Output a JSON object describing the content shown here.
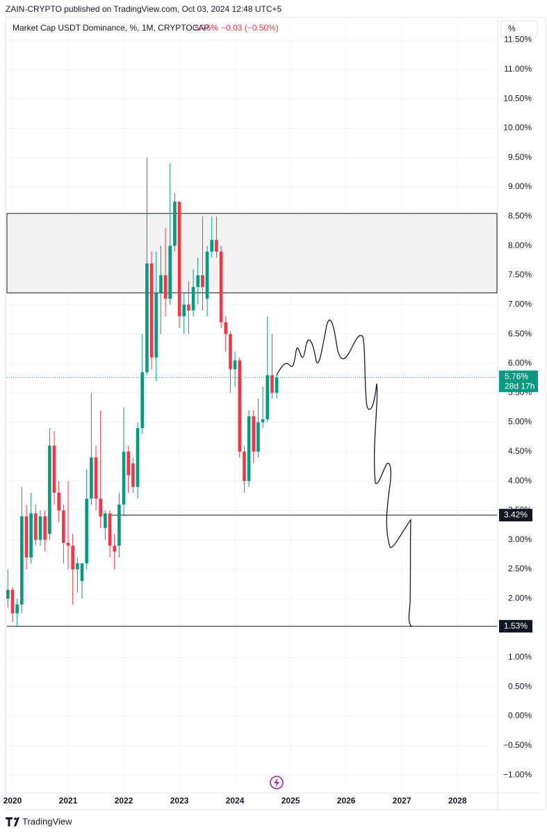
{
  "chart_data": {
    "type": "candlestick",
    "header": "ZAIN-CRYPTO published on TradingView.com, Oct 03, 2024 12:48 UTC+5",
    "legend": {
      "symbol": "Market Cap USDT Dominance, %, 1M, CRYPTOCAP",
      "price": "5.76%",
      "change": "−0.03 (−0.50%)"
    },
    "scale_button": "%",
    "brand": "TradingView",
    "up_color": "#089981",
    "down_color": "#f23645",
    "xlim": [
      2019.9,
      2028.71
    ],
    "xticks": [
      2020,
      2021,
      2022,
      2023,
      2024,
      2025,
      2026,
      2027,
      2028
    ],
    "ylim": [
      -1.27,
      11.53
    ],
    "yticks": [
      {
        "value": -1,
        "label": "−1.00%"
      },
      {
        "value": -0.5,
        "label": "−0.50%"
      },
      {
        "value": 0,
        "label": "0.00%"
      },
      {
        "value": 0.5,
        "label": "0.50%"
      },
      {
        "value": 1,
        "label": "1.00%"
      },
      {
        "value": 1.5,
        "label": "1.50%"
      },
      {
        "value": 2,
        "label": "2.00%"
      },
      {
        "value": 2.5,
        "label": "2.50%"
      },
      {
        "value": 3,
        "label": "3.00%"
      },
      {
        "value": 3.5,
        "label": "3.50%"
      },
      {
        "value": 4,
        "label": "4.00%"
      },
      {
        "value": 4.5,
        "label": "4.50%"
      },
      {
        "value": 5,
        "label": "5.00%"
      },
      {
        "value": 5.5,
        "label": "5.50%"
      },
      {
        "value": 6,
        "label": "6.00%"
      },
      {
        "value": 6.5,
        "label": "6.50%"
      },
      {
        "value": 7,
        "label": "7.00%"
      },
      {
        "value": 7.5,
        "label": "7.50%"
      },
      {
        "value": 8,
        "label": "8.00%"
      },
      {
        "value": 8.5,
        "label": "8.50%"
      },
      {
        "value": 9,
        "label": "9.00%"
      },
      {
        "value": 9.5,
        "label": "9.50%"
      },
      {
        "value": 10,
        "label": "10.00%"
      },
      {
        "value": 10.5,
        "label": "10.50%"
      },
      {
        "value": 11,
        "label": "11.00%"
      },
      {
        "value": 11.5,
        "label": "11.50%"
      }
    ],
    "grid": true,
    "zone": {
      "low": 7.2,
      "high": 8.55
    },
    "levels": [
      {
        "value": 3.42,
        "label": "3.42%"
      },
      {
        "value": 1.53,
        "label": "1.53%"
      }
    ],
    "current": {
      "value": 5.76,
      "label": "5.76%",
      "countdown": "28d 17h"
    },
    "x": [
      2019.917,
      2020.0,
      2020.083,
      2020.167,
      2020.25,
      2020.333,
      2020.417,
      2020.5,
      2020.583,
      2020.667,
      2020.75,
      2020.833,
      2020.917,
      2021.0,
      2021.083,
      2021.167,
      2021.25,
      2021.333,
      2021.417,
      2021.5,
      2021.583,
      2021.667,
      2021.75,
      2021.833,
      2021.917,
      2022.0,
      2022.083,
      2022.167,
      2022.25,
      2022.333,
      2022.417,
      2022.5,
      2022.583,
      2022.667,
      2022.75,
      2022.833,
      2022.917,
      2023.0,
      2023.083,
      2023.167,
      2023.25,
      2023.333,
      2023.417,
      2023.5,
      2023.583,
      2023.667,
      2023.75,
      2023.833,
      2023.917,
      2024.0,
      2024.083,
      2024.167,
      2024.25,
      2024.333,
      2024.417,
      2024.5,
      2024.583,
      2024.667,
      2024.75
    ],
    "open": [
      2.0,
      2.15,
      1.75,
      1.9,
      3.4,
      2.7,
      3.45,
      3.0,
      3.4,
      3.1,
      4.6,
      3.8,
      3.5,
      2.95,
      2.9,
      2.5,
      2.3,
      2.6,
      3.7,
      4.4,
      3.7,
      3.2,
      3.45,
      2.9,
      2.9,
      3.6,
      4.5,
      4.3,
      3.9,
      4.9,
      5.85,
      7.7,
      6.1,
      7.2,
      7.5,
      7.1,
      8.0,
      8.75,
      6.8,
      7.0,
      6.9,
      7.3,
      7.5,
      7.1,
      7.9,
      8.1,
      7.9,
      6.7,
      6.5,
      5.9,
      6.05,
      4.5,
      4.0,
      5.1,
      4.5,
      5.0,
      5.05,
      5.8,
      5.5
    ],
    "high": [
      2.5,
      2.2,
      2.0,
      3.9,
      3.6,
      3.8,
      3.6,
      3.5,
      3.5,
      4.9,
      4.85,
      4.0,
      3.6,
      4.0,
      3.1,
      2.7,
      2.6,
      4.2,
      5.5,
      4.6,
      5.2,
      3.5,
      3.5,
      3.1,
      3.8,
      5.25,
      4.6,
      4.4,
      5.0,
      6.5,
      9.5,
      7.9,
      7.9,
      8.0,
      8.3,
      9.4,
      8.9,
      8.75,
      7.2,
      7.4,
      7.6,
      7.8,
      8.5,
      8.0,
      8.5,
      8.5,
      8.0,
      6.8,
      6.55,
      6.2,
      6.1,
      4.6,
      5.2,
      5.2,
      5.4,
      5.6,
      6.8,
      6.5,
      5.8
    ],
    "low": [
      1.85,
      1.6,
      1.53,
      1.75,
      2.5,
      2.6,
      2.9,
      2.9,
      2.8,
      3.0,
      3.6,
      3.3,
      2.6,
      2.5,
      1.9,
      2.1,
      2.0,
      2.5,
      3.6,
      3.5,
      3.2,
      3.0,
      2.7,
      2.5,
      2.7,
      3.4,
      3.8,
      3.8,
      3.7,
      4.8,
      5.8,
      5.9,
      5.7,
      6.5,
      6.8,
      7.0,
      7.9,
      6.6,
      6.5,
      6.5,
      6.8,
      7.0,
      6.9,
      6.8,
      7.8,
      7.8,
      6.6,
      6.2,
      5.5,
      5.6,
      4.4,
      3.8,
      3.9,
      4.3,
      4.4,
      4.9,
      5.0,
      5.4,
      5.4
    ],
    "close": [
      2.15,
      1.75,
      1.9,
      3.4,
      2.7,
      3.45,
      3.0,
      3.4,
      3.0,
      4.6,
      3.8,
      3.5,
      2.95,
      2.9,
      2.5,
      2.6,
      2.6,
      3.7,
      4.4,
      3.7,
      3.4,
      3.45,
      2.9,
      2.8,
      3.6,
      4.5,
      4.1,
      3.9,
      4.9,
      5.85,
      7.7,
      6.1,
      7.2,
      7.5,
      7.1,
      8.0,
      8.75,
      6.8,
      7.0,
      6.9,
      7.3,
      7.5,
      7.3,
      7.9,
      8.1,
      7.9,
      6.7,
      6.5,
      5.9,
      6.05,
      4.5,
      4.0,
      5.1,
      4.5,
      5.0,
      5.05,
      5.8,
      5.5,
      5.76
    ]
  }
}
